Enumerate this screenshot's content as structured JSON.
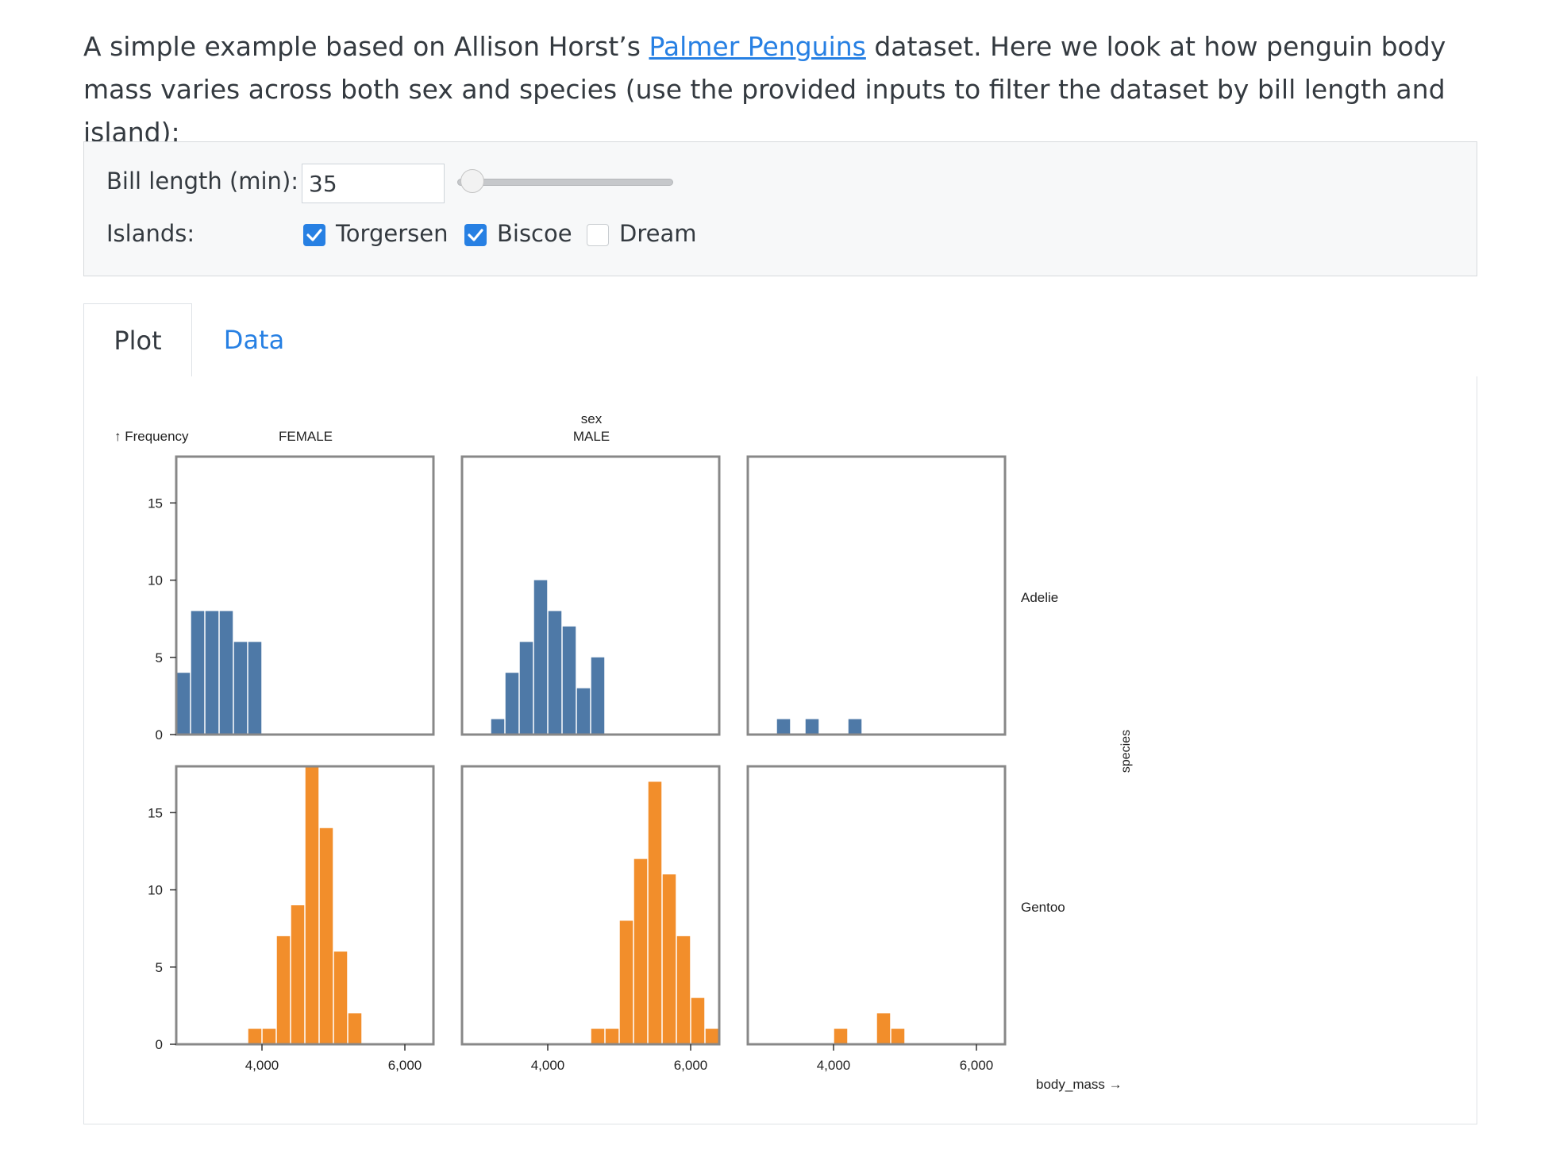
{
  "intro": {
    "before_link": "A simple example based on Allison Horst’s ",
    "link_text": "Palmer Penguins",
    "after_link": " dataset. Here we look at how penguin body mass varies across both sex and species (use the provided inputs to filter the dataset by bill length and island):"
  },
  "inputs": {
    "bill_length_label": "Bill length (min):",
    "bill_length_value": "35",
    "slider_value": 35,
    "slider_fraction": 0.2,
    "islands_label": "Islands:",
    "islands": [
      {
        "label": "Torgersen",
        "checked": true
      },
      {
        "label": "Biscoe",
        "checked": true
      },
      {
        "label": "Dream",
        "checked": false
      }
    ]
  },
  "tabs": [
    {
      "label": "Plot",
      "active": true
    },
    {
      "label": "Data",
      "active": false
    }
  ],
  "colors": {
    "adelie": "#4e79a7",
    "gentoo": "#f28e2b",
    "accent": "#2780e3"
  },
  "chart_data": {
    "type": "bar",
    "ylabel": "↑ Frequency",
    "xlabel": "body_mass →",
    "fx_label": "sex",
    "fy_label": "species",
    "columns": [
      "FEMALE",
      "MALE",
      ""
    ],
    "rows": [
      "Adelie",
      "Gentoo"
    ],
    "xlim": [
      2800,
      6400
    ],
    "ylim": [
      0,
      18
    ],
    "x_ticks": [
      "4,000",
      "6,000"
    ],
    "x_tick_values": [
      4000,
      6000
    ],
    "y_ticks": [
      "0",
      "5",
      "10",
      "15"
    ],
    "y_tick_values": [
      0,
      5,
      10,
      15
    ],
    "bin_width": 200,
    "panels": [
      {
        "species": "Adelie",
        "sex": "FEMALE",
        "bins": [
          [
            2800,
            4
          ],
          [
            3000,
            8
          ],
          [
            3200,
            8
          ],
          [
            3400,
            8
          ],
          [
            3600,
            6
          ],
          [
            3800,
            6
          ]
        ]
      },
      {
        "species": "Adelie",
        "sex": "MALE",
        "bins": [
          [
            3200,
            1
          ],
          [
            3400,
            4
          ],
          [
            3600,
            6
          ],
          [
            3800,
            10
          ],
          [
            4000,
            8
          ],
          [
            4200,
            7
          ],
          [
            4400,
            3
          ],
          [
            4600,
            5
          ]
        ]
      },
      {
        "species": "Adelie",
        "sex": "",
        "bins": [
          [
            3200,
            1
          ],
          [
            3600,
            1
          ],
          [
            4200,
            1
          ]
        ]
      },
      {
        "species": "Gentoo",
        "sex": "FEMALE",
        "bins": [
          [
            3800,
            1
          ],
          [
            4000,
            1
          ],
          [
            4200,
            7
          ],
          [
            4400,
            9
          ],
          [
            4600,
            18
          ],
          [
            4800,
            14
          ],
          [
            5000,
            6
          ],
          [
            5200,
            2
          ]
        ]
      },
      {
        "species": "Gentoo",
        "sex": "MALE",
        "bins": [
          [
            4600,
            1
          ],
          [
            4800,
            1
          ],
          [
            5000,
            8
          ],
          [
            5200,
            12
          ],
          [
            5400,
            17
          ],
          [
            5600,
            11
          ],
          [
            5800,
            7
          ],
          [
            6000,
            3
          ],
          [
            6200,
            1
          ]
        ]
      },
      {
        "species": "Gentoo",
        "sex": "",
        "bins": [
          [
            4000,
            1
          ],
          [
            4600,
            2
          ],
          [
            4800,
            1
          ]
        ]
      }
    ]
  }
}
